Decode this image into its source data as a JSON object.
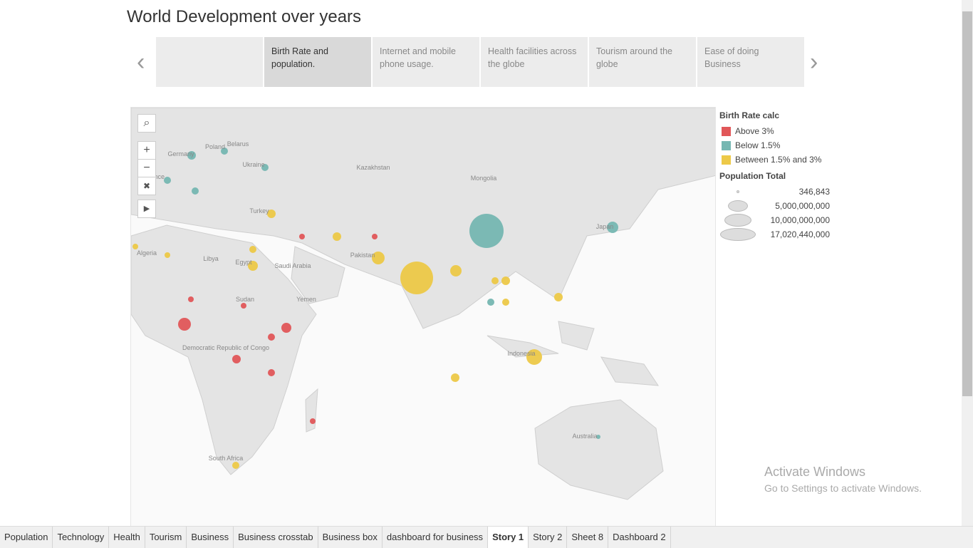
{
  "title": "World Development over years",
  "story_points": [
    "",
    "Birth Rate and population.",
    "Internet and mobile phone usage.",
    "Health facilities across the globe",
    "Tourism around the globe",
    "Ease of doing Business"
  ],
  "active_story_point": 1,
  "map": {
    "labels": [
      "Kazakhstan",
      "Mongolia",
      "Poland",
      "Ukraine",
      "Belarus",
      "Germany",
      "France",
      "Turkey",
      "Algeria",
      "Libya",
      "Egypt",
      "Saudi Arabia",
      "Sudan",
      "Yemen",
      "Pakistan",
      "Democratic Republic of Congo",
      "Indonesia",
      "Australia",
      "South Africa",
      "Japan"
    ]
  },
  "legend": {
    "color_title": "Birth Rate calc",
    "color_items": [
      {
        "label": "Above 3%",
        "color": "#e15759"
      },
      {
        "label": "Below 1.5%",
        "color": "#76b7b2"
      },
      {
        "label": "Between 1.5% and 3%",
        "color": "#edc948"
      }
    ],
    "size_title": "Population Total",
    "size_items": [
      "346,843",
      "5,000,000,000",
      "10,000,000,000",
      "17,020,440,000"
    ]
  },
  "sheet_tabs": [
    "Population",
    "Technology",
    "Health",
    "Tourism",
    "Business",
    "Business crosstab",
    "Business box",
    "dashboard for business",
    "Story 1",
    "Story 2",
    "Sheet 8",
    "Dashboard 2"
  ],
  "active_tab": 8,
  "watermark": {
    "title": "Activate Windows",
    "subtitle": "Go to Settings to activate Windows."
  }
}
